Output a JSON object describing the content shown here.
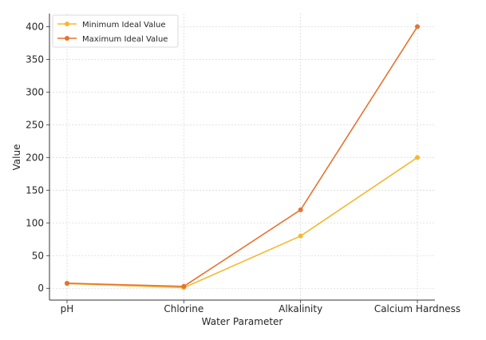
{
  "chart_data": {
    "type": "line",
    "title": "",
    "xlabel": "Water Parameter",
    "ylabel": "Value",
    "categories": [
      "pH",
      "Chlorine",
      "Alkalinity",
      "Calcium Hardness"
    ],
    "series": [
      {
        "name": "Minimum Ideal Value",
        "values": [
          7.2,
          1,
          80,
          200
        ],
        "color": "#F5B82E"
      },
      {
        "name": "Maximum Ideal Value",
        "values": [
          7.8,
          3,
          120,
          400
        ],
        "color": "#E5732F"
      }
    ],
    "ylim": [
      -18,
      420
    ],
    "yticks": [
      0,
      50,
      100,
      150,
      200,
      250,
      300,
      350,
      400
    ],
    "grid": true,
    "legend_position": "top-left",
    "marker": "circle"
  }
}
